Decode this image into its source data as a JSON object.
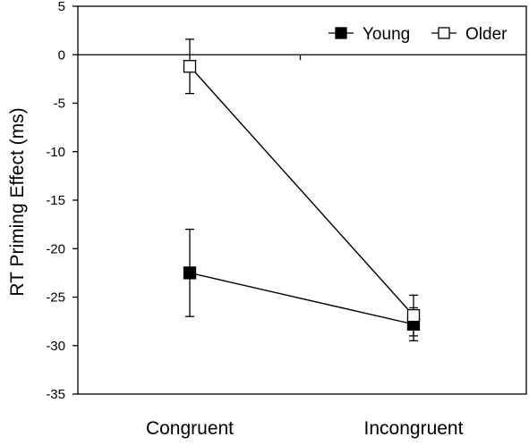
{
  "chart_data": {
    "type": "line",
    "categories": [
      "Congruent",
      "Incongruent"
    ],
    "series": [
      {
        "name": "Young",
        "values": [
          -22.5,
          -27.8
        ],
        "error": [
          4.5,
          1.7
        ],
        "marker": "filled-square",
        "color": "#000000"
      },
      {
        "name": "Older",
        "values": [
          -1.2,
          -26.9
        ],
        "error": [
          2.8,
          2.1
        ],
        "marker": "open-square",
        "color": "#000000"
      }
    ],
    "title": "",
    "xlabel": "",
    "ylabel": "RT Priming Effect (ms)",
    "ylim": [
      -35,
      5
    ],
    "yticks": [
      5,
      0,
      -5,
      -10,
      -15,
      -20,
      -25,
      -30,
      -35
    ],
    "zero_line": true,
    "legend": "top-right",
    "grid": false
  }
}
